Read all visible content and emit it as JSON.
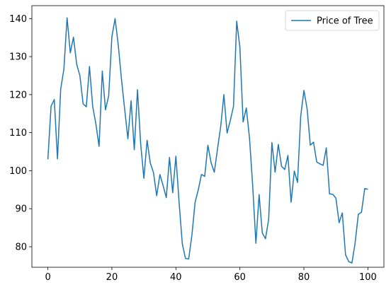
{
  "chart_data": {
    "type": "line",
    "title": "",
    "xlabel": "",
    "ylabel": "",
    "xlim": [
      -5,
      105
    ],
    "ylim": [
      74.6,
      143.4
    ],
    "x_ticks": [
      0,
      20,
      40,
      60,
      80,
      100
    ],
    "y_ticks": [
      80,
      90,
      100,
      110,
      120,
      130,
      140
    ],
    "x_tick_labels": [
      "0",
      "20",
      "40",
      "60",
      "80",
      "100"
    ],
    "y_tick_labels": [
      "80",
      "90",
      "100",
      "110",
      "120",
      "130",
      "140"
    ],
    "grid": false,
    "legend_position": "upper-right",
    "series": [
      {
        "name": "Price of Tree",
        "color": "#1f77b4",
        "x": [
          0,
          1,
          2,
          3,
          4,
          5,
          6,
          7,
          8,
          9,
          10,
          11,
          12,
          13,
          14,
          15,
          16,
          17,
          18,
          19,
          20,
          21,
          22,
          23,
          24,
          25,
          26,
          27,
          28,
          29,
          30,
          31,
          32,
          33,
          34,
          35,
          36,
          37,
          38,
          39,
          40,
          41,
          42,
          43,
          44,
          45,
          46,
          47,
          48,
          49,
          50,
          51,
          52,
          53,
          54,
          55,
          56,
          57,
          58,
          59,
          60,
          61,
          62,
          63,
          64,
          65,
          66,
          67,
          68,
          69,
          70,
          71,
          72,
          73,
          74,
          75,
          76,
          77,
          78,
          79,
          80,
          81,
          82,
          83,
          84,
          85,
          86,
          87,
          88,
          89,
          90,
          91,
          92,
          93,
          94,
          95,
          96,
          97,
          98,
          99,
          100
        ],
        "values": [
          103.0,
          117.0,
          118.7,
          103.1,
          121.4,
          126.7,
          140.2,
          131.0,
          135.1,
          128.0,
          125.0,
          117.6,
          116.8,
          127.4,
          116.9,
          112.3,
          106.4,
          126.2,
          116.0,
          119.7,
          135.2,
          140.0,
          133.0,
          124.0,
          116.1,
          108.4,
          118.4,
          105.5,
          121.3,
          107.0,
          98.0,
          108.0,
          102.0,
          99.5,
          93.4,
          99.0,
          96.1,
          92.9,
          103.5,
          94.2,
          103.8,
          91.7,
          80.8,
          76.9,
          76.8,
          83.0,
          91.7,
          95.0,
          99.0,
          98.5,
          106.7,
          102.1,
          99.6,
          105.7,
          111.6,
          120.0,
          109.9,
          113.2,
          116.9,
          139.3,
          132.4,
          112.8,
          116.5,
          108.6,
          96.0,
          80.9,
          93.7,
          83.6,
          82.1,
          87.3,
          107.4,
          99.6,
          106.9,
          101.2,
          100.3,
          104.0,
          91.7,
          99.9,
          96.9,
          114.3,
          121.1,
          116.3,
          106.7,
          107.5,
          102.3,
          101.8,
          101.4,
          106.0,
          93.9,
          93.8,
          92.8,
          86.3,
          88.9,
          77.9,
          76.1,
          75.7,
          81.0,
          88.5,
          89.1,
          95.3,
          95.1
        ]
      }
    ]
  }
}
